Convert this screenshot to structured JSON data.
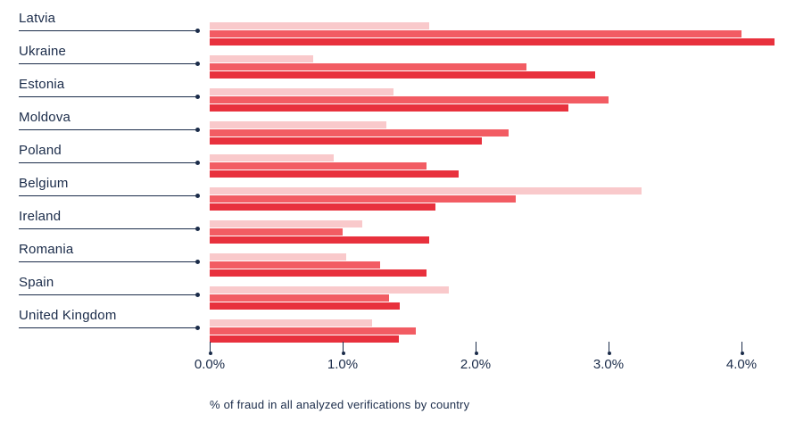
{
  "page": {
    "background": "#ffffff",
    "text_color": "#1a2b49"
  },
  "chart_data": {
    "type": "bar",
    "orientation": "horizontal",
    "title": "",
    "caption": "% of fraud in all analyzed verifications by country",
    "categories": [
      "Latvia",
      "Ukraine",
      "Estonia",
      "Moldova",
      "Poland",
      "Belgium",
      "Ireland",
      "Romania",
      "Spain",
      "United Kingdom"
    ],
    "series": [
      {
        "name": "series-1-light",
        "color": "#f9c9cb",
        "values": [
          1.65,
          0.78,
          1.38,
          1.33,
          0.93,
          3.25,
          1.15,
          1.03,
          1.8,
          1.22
        ]
      },
      {
        "name": "series-2-medium",
        "color": "#f25c63",
        "values": [
          4.0,
          2.38,
          3.0,
          2.25,
          1.63,
          2.3,
          1.0,
          1.28,
          1.35,
          1.55
        ]
      },
      {
        "name": "series-3-dark",
        "color": "#e8313d",
        "values": [
          4.25,
          2.9,
          2.7,
          2.05,
          1.87,
          1.7,
          1.65,
          1.63,
          1.43,
          1.42
        ]
      }
    ],
    "x_ticks": [
      "0.0%",
      "1.0%",
      "2.0%",
      "3.0%",
      "4.0%"
    ],
    "x_tick_values": [
      0,
      1,
      2,
      3,
      4
    ],
    "xlim": [
      0,
      4.3
    ],
    "grid": false,
    "legend": "none",
    "colors": {
      "label_text": "#1a2b49",
      "axis_text": "#1a2b49",
      "rule": "#1a2b49"
    }
  }
}
